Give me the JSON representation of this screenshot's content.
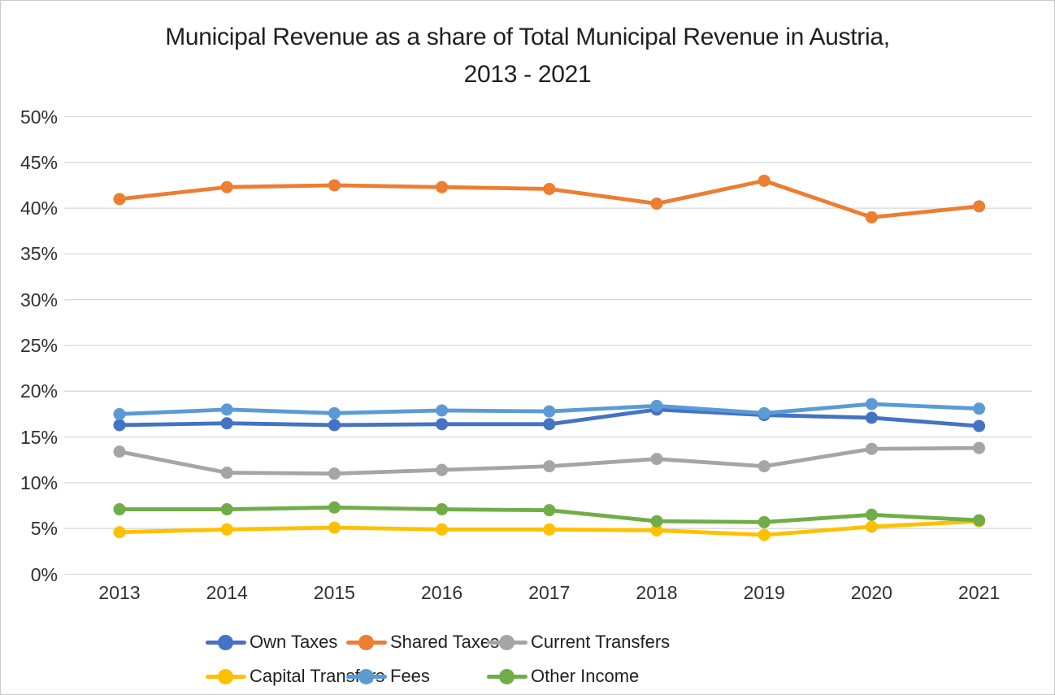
{
  "title": {
    "line1": "Municipal Revenue as a share of Total Municipal Revenue in Austria,",
    "line2": "2013 - 2021"
  },
  "chart_data": {
    "type": "line",
    "title": "Municipal Revenue as a share of Total Municipal Revenue in Austria, 2013 - 2021",
    "xlabel": "",
    "ylabel": "",
    "categories": [
      "2013",
      "2014",
      "2015",
      "2016",
      "2017",
      "2018",
      "2019",
      "2020",
      "2021"
    ],
    "series": [
      {
        "name": "Own Taxes",
        "color": "#4472C4",
        "values": [
          16.3,
          16.5,
          16.3,
          16.4,
          16.4,
          18.0,
          17.4,
          17.1,
          16.2
        ]
      },
      {
        "name": "Shared Taxes",
        "color": "#ED7D31",
        "values": [
          41.0,
          42.3,
          42.5,
          42.3,
          42.1,
          40.5,
          43.0,
          39.0,
          40.2
        ]
      },
      {
        "name": "Current Transfers",
        "color": "#A5A5A5",
        "values": [
          13.4,
          11.1,
          11.0,
          11.4,
          11.8,
          12.6,
          11.8,
          13.7,
          13.8
        ]
      },
      {
        "name": "Capital Transfers",
        "color": "#FFC000",
        "values": [
          4.6,
          4.9,
          5.1,
          4.9,
          4.9,
          4.8,
          4.3,
          5.2,
          5.8
        ]
      },
      {
        "name": "Fees",
        "color": "#5B9BD5",
        "values": [
          17.5,
          18.0,
          17.6,
          17.9,
          17.8,
          18.4,
          17.6,
          18.6,
          18.1
        ]
      },
      {
        "name": "Other Income",
        "color": "#70AD47",
        "values": [
          7.1,
          7.1,
          7.3,
          7.1,
          7.0,
          5.8,
          5.7,
          6.5,
          5.9
        ]
      }
    ],
    "y_tick_labels": [
      "50%",
      "45%",
      "40%",
      "35%",
      "30%",
      "25%",
      "20%",
      "15%",
      "10%",
      "5%",
      "0%"
    ],
    "ylim": [
      0,
      50
    ],
    "grid": "horizontal",
    "gridline_color": "#D9D9D9",
    "legend_position": "bottom"
  }
}
